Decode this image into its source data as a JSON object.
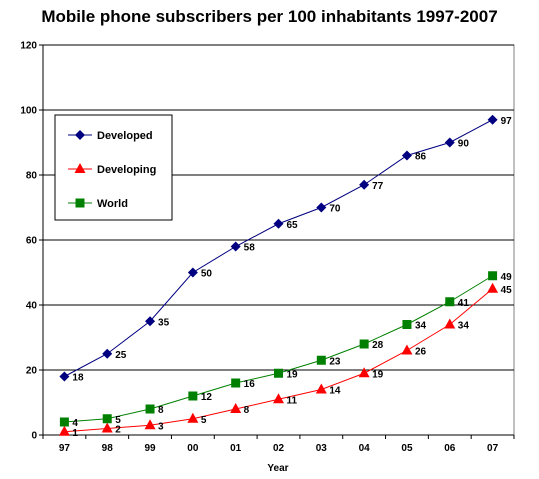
{
  "chart_data": {
    "type": "line",
    "title": "Mobile phone subscribers per 100 inhabitants 1997-2007",
    "xlabel": "Year",
    "ylabel": "",
    "categories": [
      "97",
      "98",
      "99",
      "00",
      "01",
      "02",
      "03",
      "04",
      "05",
      "06",
      "07"
    ],
    "ylim": [
      0,
      120
    ],
    "yticks": [
      0,
      20,
      40,
      60,
      80,
      100,
      120
    ],
    "grid": true,
    "legend_position": "top-left",
    "series": [
      {
        "name": "Developed",
        "color": "#000080",
        "marker": "diamond",
        "values": [
          18,
          25,
          35,
          50,
          58,
          65,
          70,
          77,
          86,
          90,
          97
        ]
      },
      {
        "name": "Developing",
        "color": "#ff0000",
        "marker": "triangle",
        "values": [
          1,
          2,
          3,
          5,
          8,
          11,
          14,
          19,
          26,
          34,
          45
        ]
      },
      {
        "name": "World",
        "color": "#008000",
        "marker": "square",
        "values": [
          4,
          5,
          8,
          12,
          16,
          19,
          23,
          28,
          34,
          41,
          49
        ]
      }
    ]
  }
}
